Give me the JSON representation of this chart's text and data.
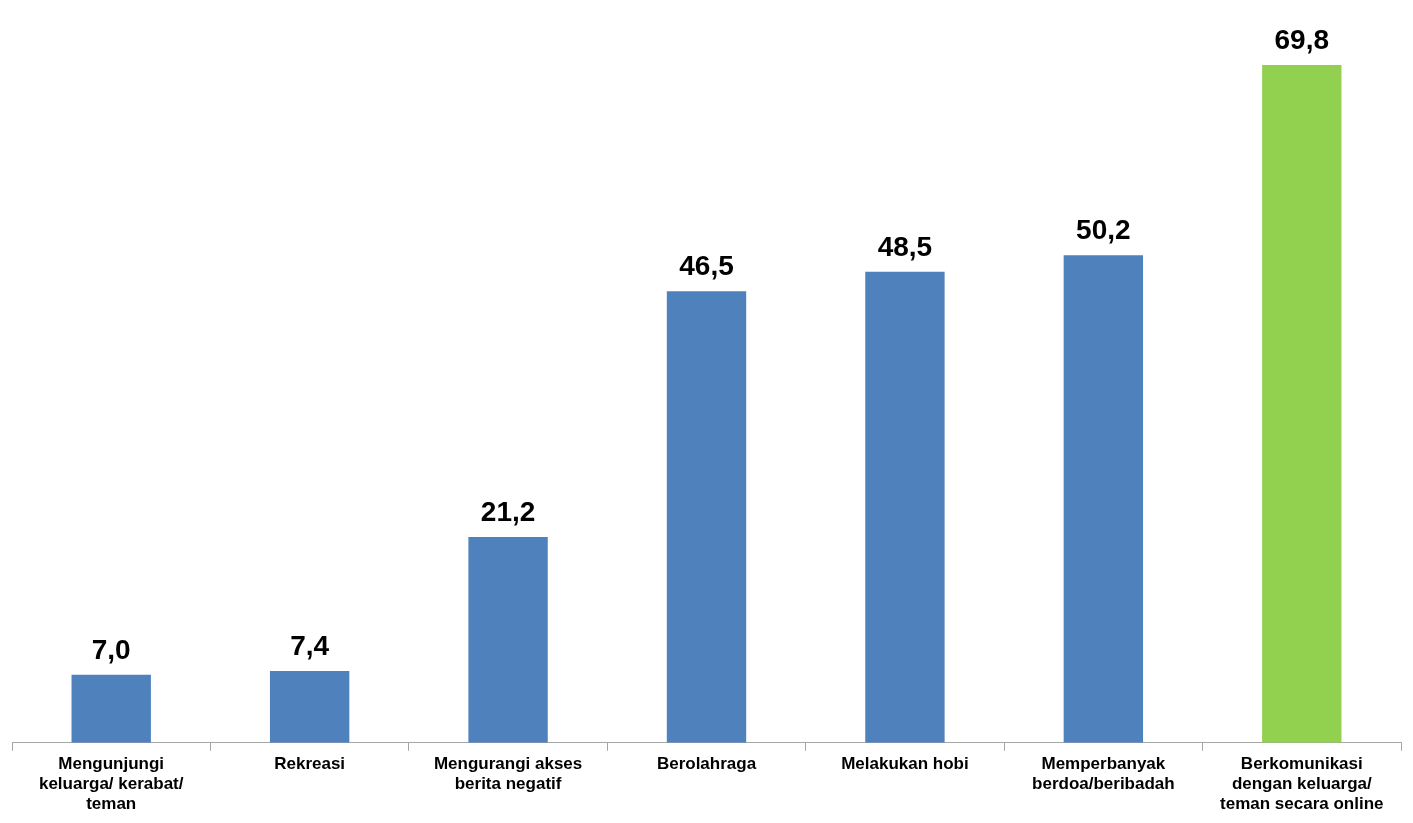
{
  "chart_data": {
    "type": "bar",
    "categories": [
      "Mengunjungi keluarga/ kerabat/ teman",
      "Rekreasi",
      "Mengurangi akses berita negatif",
      "Berolahraga",
      "Melakukan hobi",
      "Memperbanyak berdoa/beribadah",
      "Berkomunikasi dengan keluarga/ teman secara online"
    ],
    "values": [
      7.0,
      7.4,
      21.2,
      46.5,
      48.5,
      50.2,
      69.8
    ],
    "colors": [
      "#4f81bd",
      "#4f81bd",
      "#4f81bd",
      "#4f81bd",
      "#4f81bd",
      "#4f81bd",
      "#92d050"
    ],
    "value_labels": [
      "7,0",
      "7,4",
      "21,2",
      "46,5",
      "48,5",
      "50,2",
      "69,8"
    ],
    "grid": false,
    "legend": false
  }
}
